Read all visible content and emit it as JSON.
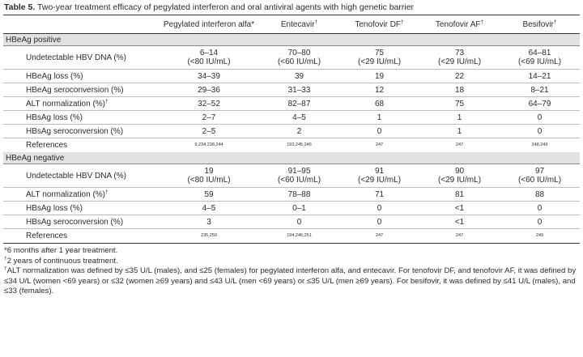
{
  "caption": {
    "label": "Table 5.",
    "text": " Two-year treatment efficacy of pegylated interferon and oral antiviral agents with high genetic barrier"
  },
  "columns": [
    {
      "label": "Pegylated interferon alfa*",
      "mark": ""
    },
    {
      "label": "Entecavir",
      "mark": "†"
    },
    {
      "label": "Tenofovir DF",
      "mark": "†"
    },
    {
      "label": "Tenofovir AF",
      "mark": "†"
    },
    {
      "label": "Besifovir",
      "mark": "†"
    }
  ],
  "sections": [
    {
      "title": "HBeAg positive",
      "rows": [
        {
          "label": "Undetectable HBV DNA (%)",
          "mark": "",
          "tall": true,
          "values": [
            [
              "6–14",
              "(<80 IU/mL)"
            ],
            [
              "70–80",
              "(<60 IU/mL)"
            ],
            [
              "75",
              "(<29 IU/mL)"
            ],
            [
              "73",
              "(<29 IU/mL)"
            ],
            [
              "64–81",
              "(<69 IU/mL)"
            ]
          ]
        },
        {
          "label": "HBeAg loss (%)",
          "mark": "",
          "values": [
            [
              "34–39"
            ],
            [
              "39"
            ],
            [
              "19"
            ],
            [
              "22"
            ],
            [
              "14–21"
            ]
          ]
        },
        {
          "label": "HBeAg seroconversion (%)",
          "mark": "",
          "values": [
            [
              "29–36"
            ],
            [
              "31–33"
            ],
            [
              "12"
            ],
            [
              "18"
            ],
            [
              "8–21"
            ]
          ]
        },
        {
          "label": "ALT normalization (%)",
          "mark": "†",
          "values": [
            [
              "32–52"
            ],
            [
              "82–87"
            ],
            [
              "68"
            ],
            [
              "75"
            ],
            [
              "64–79"
            ]
          ]
        },
        {
          "label": "HBsAg loss (%)",
          "mark": "",
          "values": [
            [
              "2–7"
            ],
            [
              "4–5"
            ],
            [
              "1"
            ],
            [
              "1"
            ],
            [
              "0"
            ]
          ]
        },
        {
          "label": "HBsAg seroconversion (%)",
          "mark": "",
          "values": [
            [
              "2–5"
            ],
            [
              "2"
            ],
            [
              "0"
            ],
            [
              "1"
            ],
            [
              "0"
            ]
          ]
        },
        {
          "label": "References",
          "mark": "",
          "ref": true,
          "values": [
            [
              "9,234,238,244"
            ],
            [
              "193,245,246"
            ],
            [
              "247"
            ],
            [
              "247"
            ],
            [
              "248,249"
            ]
          ]
        }
      ]
    },
    {
      "title": "HBeAg negative",
      "rows": [
        {
          "label": "Undetectable HBV DNA (%)",
          "mark": "",
          "tall": true,
          "values": [
            [
              "19",
              "(<80 IU/mL)"
            ],
            [
              "91–95",
              "(<60 IU/mL)"
            ],
            [
              "91",
              "(<29 IU/mL)"
            ],
            [
              "90",
              "(<29 IU/mL)"
            ],
            [
              "97",
              "(<60 IU/mL)"
            ]
          ]
        },
        {
          "label": "ALT normalization (%)",
          "mark": "†",
          "values": [
            [
              "59"
            ],
            [
              "78–88"
            ],
            [
              "71"
            ],
            [
              "81"
            ],
            [
              "88"
            ]
          ]
        },
        {
          "label": "HBsAg loss (%)",
          "mark": "",
          "values": [
            [
              "4–5"
            ],
            [
              "0–1"
            ],
            [
              "0"
            ],
            [
              "<1"
            ],
            [
              "0"
            ]
          ]
        },
        {
          "label": "HBsAg seroconversion (%)",
          "mark": "",
          "values": [
            [
              "3"
            ],
            [
              "0"
            ],
            [
              "0"
            ],
            [
              "<1"
            ],
            [
              "0"
            ]
          ]
        },
        {
          "label": "References",
          "mark": "",
          "ref": true,
          "values": [
            [
              "235,250"
            ],
            [
              "194,246,251"
            ],
            [
              "247"
            ],
            [
              "247"
            ],
            [
              "249"
            ]
          ]
        }
      ]
    }
  ],
  "footnotes": [
    {
      "mark": "",
      "lines": [
        "*6 months after 1 year treatment."
      ]
    },
    {
      "mark": "†",
      "lines": [
        "2 years of continuous treatment."
      ]
    },
    {
      "mark": "†",
      "lines": [
        "ALT normalization was defined by ≤35 U/L (males), and ≤25 (females) for pegylated interferon alfa, and entecavir. For tenofovir DF, and tenofovir AF, it was defined by",
        "≤34 U/L (women <69 years) or ≤32 (women ≥69 years) and ≤43 U/L (men <69 years) or ≤35 U/L (men ≥69 years). For besifovir, it was defined by ≤41 U/L (males), and",
        "≤33 (females)."
      ]
    }
  ]
}
